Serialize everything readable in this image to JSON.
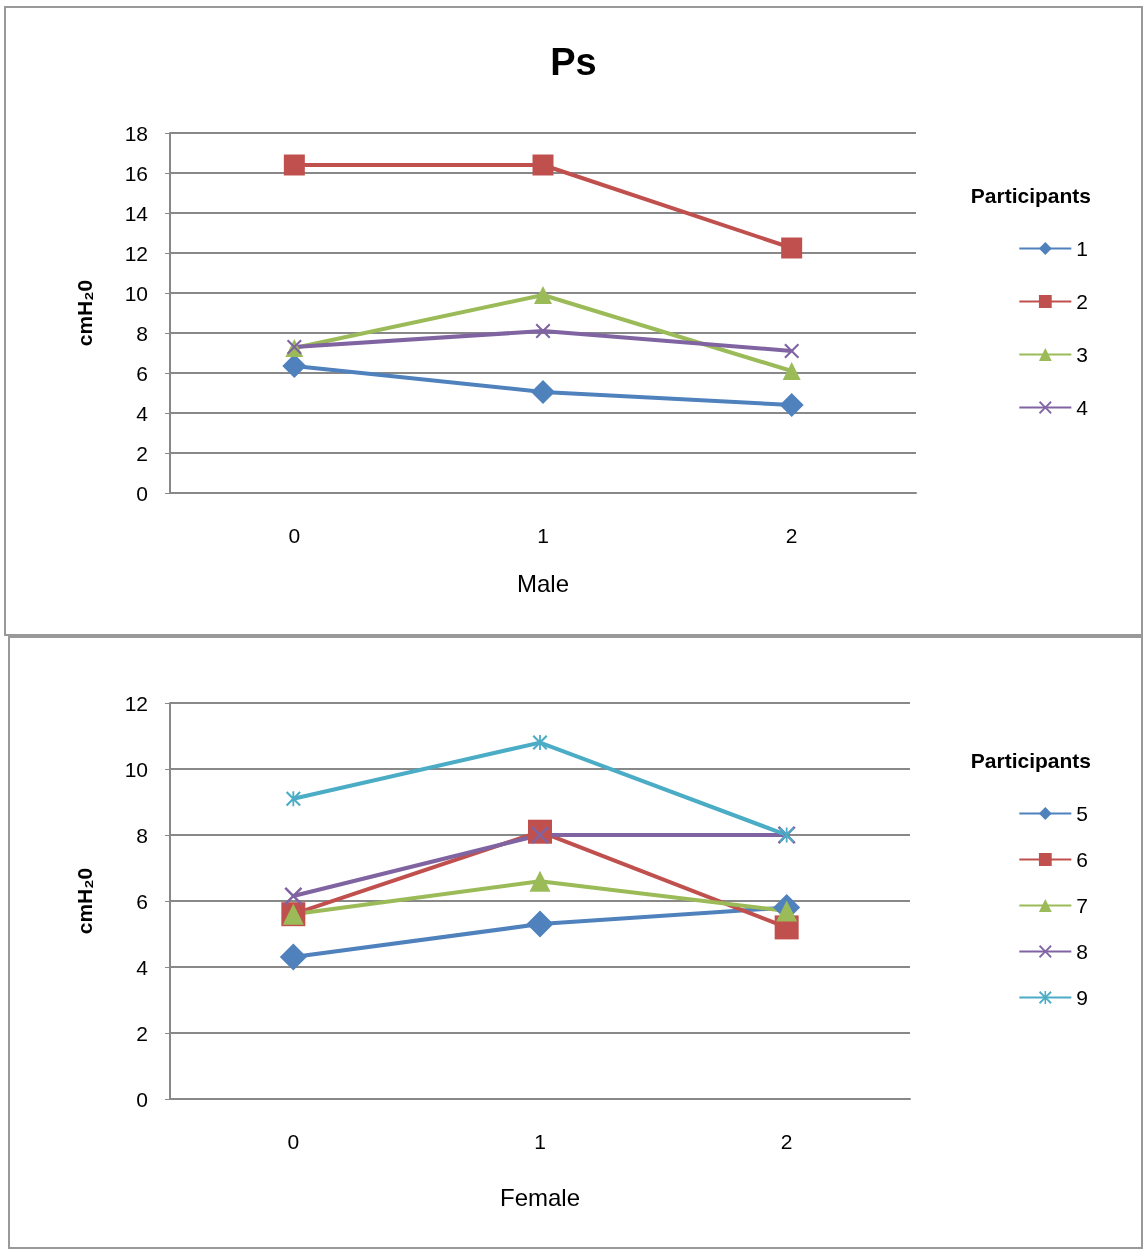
{
  "chart_data": [
    {
      "type": "line",
      "title": "Ps",
      "xlabel": "Male",
      "ylabel": "cmH₂0",
      "legend_title": "Participants",
      "categories": [
        "0",
        "1",
        "2"
      ],
      "ylim": [
        0,
        18
      ],
      "yticks": [
        0,
        2,
        4,
        6,
        8,
        10,
        12,
        14,
        16,
        18
      ],
      "grid": "y",
      "legend": "right",
      "series": [
        {
          "name": "1",
          "color": "#4f81bd",
          "marker": "diamond",
          "values": [
            6.35,
            5.05,
            4.4
          ]
        },
        {
          "name": "2",
          "color": "#c0504d",
          "marker": "square",
          "values": [
            16.4,
            16.4,
            12.25
          ]
        },
        {
          "name": "3",
          "color": "#9bbb59",
          "marker": "triangle",
          "values": [
            7.25,
            9.9,
            6.1
          ]
        },
        {
          "name": "4",
          "color": "#8064a2",
          "marker": "cross",
          "values": [
            7.3,
            8.1,
            7.1
          ]
        }
      ]
    },
    {
      "type": "line",
      "xlabel": "Female",
      "ylabel": "cmH₂0",
      "legend_title": "Participants",
      "categories": [
        "0",
        "1",
        "2"
      ],
      "ylim": [
        0,
        12
      ],
      "yticks": [
        0,
        2,
        4,
        6,
        8,
        10,
        12
      ],
      "grid": "y",
      "legend": "right",
      "series": [
        {
          "name": "5",
          "color": "#4f81bd",
          "marker": "diamond",
          "values": [
            4.3,
            5.3,
            5.8
          ]
        },
        {
          "name": "6",
          "color": "#c0504d",
          "marker": "square",
          "values": [
            5.6,
            8.1,
            5.2
          ]
        },
        {
          "name": "7",
          "color": "#9bbb59",
          "marker": "triangle",
          "values": [
            5.6,
            6.6,
            5.7
          ]
        },
        {
          "name": "8",
          "color": "#8064a2",
          "marker": "cross",
          "values": [
            6.15,
            8.0,
            8.0
          ]
        },
        {
          "name": "9",
          "color": "#4bacc6",
          "marker": "star",
          "values": [
            9.1,
            10.8,
            8.0
          ]
        }
      ]
    }
  ]
}
